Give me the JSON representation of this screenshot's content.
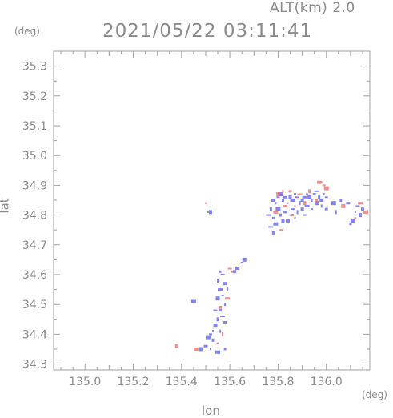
{
  "header": {
    "altitude": "ALT(km) 2.0",
    "timestamp": "2021/05/22 03:11:41"
  },
  "chart_data": {
    "type": "scatter",
    "title": "",
    "xlabel": "lon",
    "ylabel": "lat",
    "x_unit": "(deg)",
    "y_unit": "(deg)",
    "xlim": [
      134.87,
      136.18
    ],
    "ylim": [
      34.28,
      35.35
    ],
    "x_ticks": [
      "135.0",
      "135.2",
      "135.4",
      "135.6",
      "135.8",
      "136.0"
    ],
    "x_tick_values": [
      135.0,
      135.2,
      135.4,
      135.6,
      135.8,
      136.0
    ],
    "y_ticks": [
      "34.3",
      "34.4",
      "34.5",
      "34.6",
      "34.7",
      "34.8",
      "34.9",
      "35.0",
      "35.1",
      "35.2",
      "35.3"
    ],
    "y_tick_values": [
      34.3,
      34.4,
      34.5,
      34.6,
      34.7,
      34.8,
      34.9,
      35.0,
      35.1,
      35.2,
      35.3
    ],
    "grid": false,
    "colors": {
      "approaching": "#5a5ae6",
      "receding": "#e66a6a"
    },
    "series": [
      {
        "color": "blue",
        "points": [
          [
            135.51,
            34.81
          ],
          [
            135.52,
            34.81
          ],
          [
            135.45,
            34.51
          ],
          [
            135.56,
            34.61
          ],
          [
            135.57,
            34.6
          ],
          [
            135.55,
            34.58
          ],
          [
            135.58,
            34.57
          ],
          [
            135.56,
            34.55
          ],
          [
            135.57,
            34.53
          ],
          [
            135.55,
            34.52
          ],
          [
            135.58,
            34.5
          ],
          [
            135.56,
            34.48
          ],
          [
            135.57,
            34.46
          ],
          [
            135.55,
            34.45
          ],
          [
            135.54,
            34.43
          ],
          [
            135.53,
            34.41
          ],
          [
            135.52,
            34.4
          ],
          [
            135.51,
            34.39
          ],
          [
            135.53,
            34.38
          ],
          [
            135.5,
            34.36
          ],
          [
            135.52,
            34.35
          ],
          [
            135.48,
            34.35
          ],
          [
            135.55,
            34.34
          ],
          [
            135.58,
            34.35
          ],
          [
            135.54,
            34.48
          ],
          [
            135.59,
            34.55
          ],
          [
            135.62,
            34.61
          ],
          [
            135.63,
            34.62
          ],
          [
            135.65,
            34.64
          ],
          [
            135.66,
            34.65
          ],
          [
            135.56,
            34.41
          ],
          [
            135.58,
            34.44
          ],
          [
            135.76,
            34.8
          ],
          [
            135.77,
            34.82
          ],
          [
            135.78,
            34.85
          ],
          [
            135.79,
            34.84
          ],
          [
            135.8,
            34.86
          ],
          [
            135.81,
            34.87
          ],
          [
            135.82,
            34.85
          ],
          [
            135.83,
            34.86
          ],
          [
            135.84,
            34.84
          ],
          [
            135.85,
            34.86
          ],
          [
            135.86,
            34.85
          ],
          [
            135.87,
            34.87
          ],
          [
            135.88,
            34.86
          ],
          [
            135.89,
            34.84
          ],
          [
            135.9,
            34.85
          ],
          [
            135.91,
            34.86
          ],
          [
            135.92,
            34.87
          ],
          [
            135.93,
            34.86
          ],
          [
            135.94,
            34.85
          ],
          [
            135.95,
            34.87
          ],
          [
            135.96,
            34.88
          ],
          [
            135.97,
            34.86
          ],
          [
            135.98,
            34.85
          ],
          [
            135.99,
            34.87
          ],
          [
            136.0,
            34.86
          ],
          [
            135.8,
            34.82
          ],
          [
            135.81,
            34.8
          ],
          [
            135.83,
            34.81
          ],
          [
            135.85,
            34.8
          ],
          [
            135.82,
            34.78
          ],
          [
            135.79,
            34.77
          ],
          [
            135.78,
            34.79
          ],
          [
            135.86,
            34.82
          ],
          [
            135.88,
            34.81
          ],
          [
            135.9,
            34.82
          ],
          [
            135.92,
            34.83
          ],
          [
            135.94,
            34.82
          ],
          [
            135.96,
            34.84
          ],
          [
            135.98,
            34.83
          ],
          [
            136.0,
            34.82
          ],
          [
            135.77,
            34.76
          ],
          [
            135.78,
            34.74
          ],
          [
            135.84,
            34.78
          ],
          [
            135.87,
            34.79
          ],
          [
            135.91,
            34.8
          ],
          [
            136.03,
            34.84
          ],
          [
            136.06,
            34.85
          ],
          [
            136.09,
            34.84
          ],
          [
            136.12,
            34.81
          ],
          [
            136.14,
            34.8
          ],
          [
            136.11,
            34.78
          ],
          [
            136.1,
            34.77
          ],
          [
            136.13,
            34.83
          ],
          [
            136.04,
            34.81
          ],
          [
            136.15,
            34.82
          ]
        ]
      },
      {
        "color": "red",
        "points": [
          [
            135.5,
            34.84
          ],
          [
            135.38,
            34.36
          ],
          [
            135.46,
            34.35
          ],
          [
            135.61,
            34.61
          ],
          [
            135.6,
            34.62
          ],
          [
            135.57,
            34.4
          ],
          [
            135.56,
            34.49
          ],
          [
            135.59,
            34.52
          ],
          [
            135.55,
            34.37
          ],
          [
            135.8,
            34.87
          ],
          [
            135.82,
            34.88
          ],
          [
            135.85,
            34.88
          ],
          [
            135.89,
            34.87
          ],
          [
            135.93,
            34.88
          ],
          [
            135.97,
            34.91
          ],
          [
            135.98,
            34.91
          ],
          [
            135.99,
            34.9
          ],
          [
            136.0,
            34.89
          ],
          [
            135.96,
            34.85
          ],
          [
            135.83,
            34.83
          ],
          [
            135.87,
            34.83
          ],
          [
            135.91,
            34.84
          ],
          [
            135.79,
            34.81
          ],
          [
            135.86,
            34.8
          ],
          [
            135.81,
            34.75
          ],
          [
            136.17,
            34.81
          ],
          [
            136.16,
            34.81
          ],
          [
            136.14,
            34.84
          ],
          [
            136.12,
            34.79
          ],
          [
            136.07,
            34.83
          ]
        ]
      }
    ]
  }
}
